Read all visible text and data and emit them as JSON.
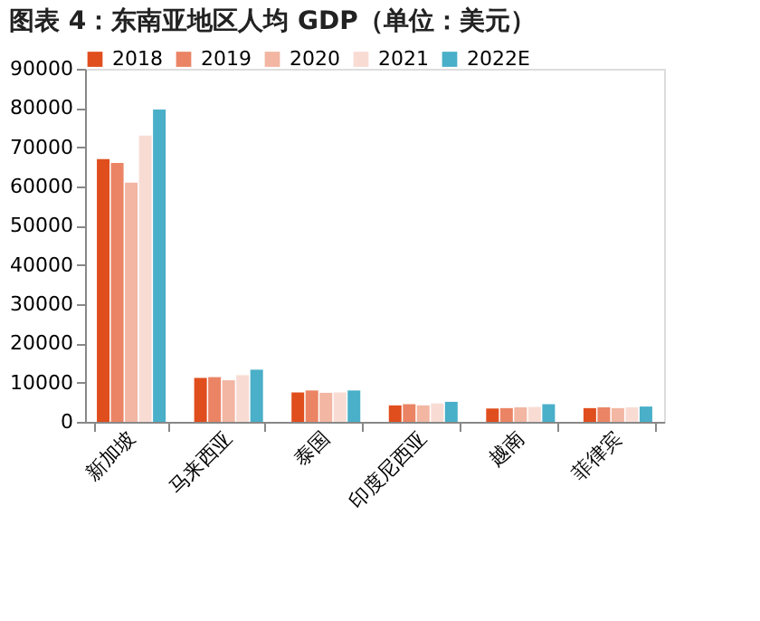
{
  "chart_data": {
    "type": "bar",
    "title": "图表 4：东南亚地区人均 GDP（单位：美元）",
    "categories": [
      "新加坡",
      "马来西亚",
      "泰国",
      "印度尼西亚",
      "越南",
      "菲律宾"
    ],
    "series": [
      {
        "name": "2018",
        "color": "#e04e1e",
        "values": [
          67000,
          11200,
          7500,
          4200,
          3400,
          3500
        ]
      },
      {
        "name": "2019",
        "color": "#ea8464",
        "values": [
          66000,
          11400,
          8000,
          4500,
          3500,
          3700
        ]
      },
      {
        "name": "2020",
        "color": "#f2b6a2",
        "values": [
          61000,
          10600,
          7400,
          4200,
          3700,
          3500
        ]
      },
      {
        "name": "2021",
        "color": "#f8dcd3",
        "values": [
          73000,
          11900,
          7500,
          4700,
          3800,
          3700
        ]
      },
      {
        "name": "2022E",
        "color": "#4aafc8",
        "values": [
          79600,
          13300,
          8000,
          5100,
          4500,
          3900
        ]
      }
    ],
    "ylim": [
      0,
      90000
    ],
    "yticks": [
      0,
      10000,
      20000,
      30000,
      40000,
      50000,
      60000,
      70000,
      80000,
      90000
    ],
    "grid": false,
    "legend": "top"
  }
}
